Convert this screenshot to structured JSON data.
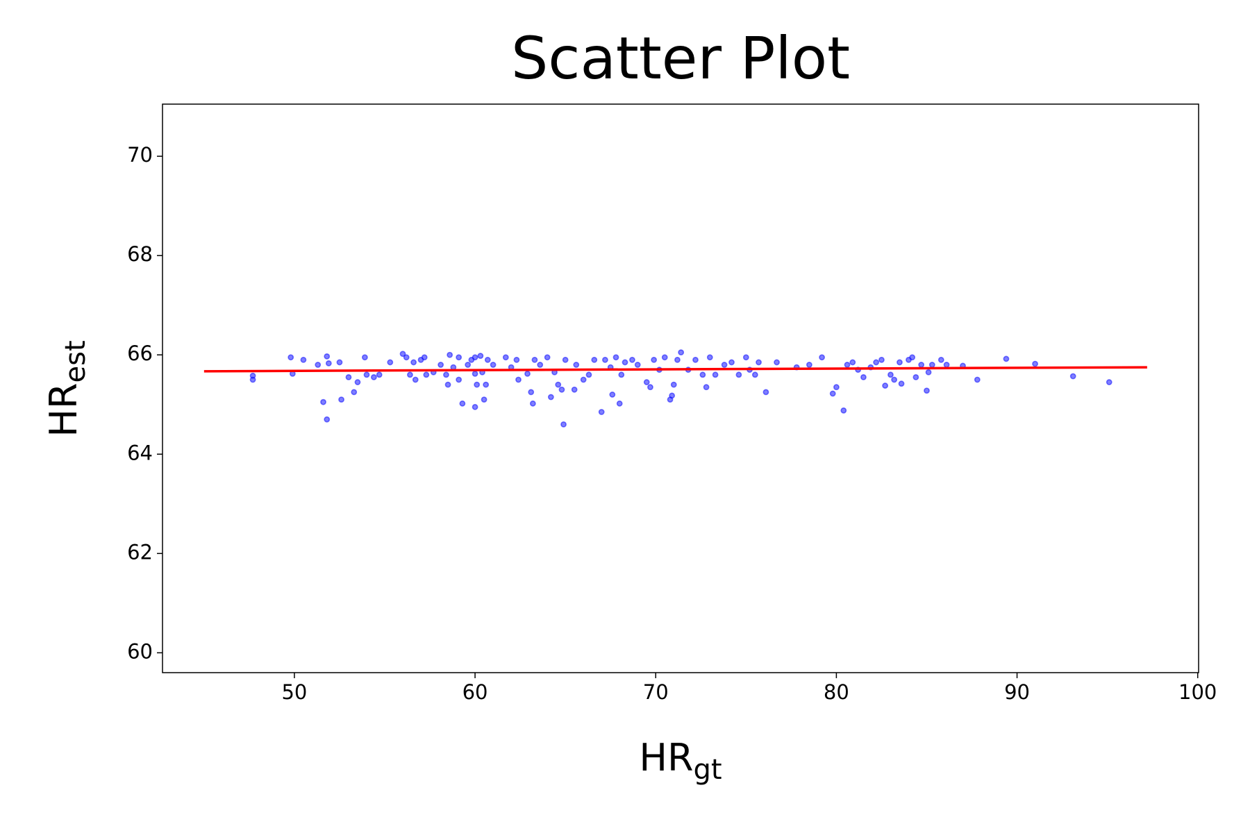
{
  "chart_data": {
    "type": "scatter",
    "title": "Scatter Plot",
    "xlabel": "HR",
    "xlabel_sub": "gt",
    "ylabel": "HR",
    "ylabel_sub": "est",
    "xlim": [
      42.7,
      100.05
    ],
    "ylim": [
      59.6,
      71.05
    ],
    "xticks": [
      50,
      60,
      70,
      80,
      90,
      100
    ],
    "yticks": [
      60,
      62,
      64,
      66,
      68,
      70
    ],
    "series": [
      {
        "type": "scatter",
        "color": "blue",
        "x": [
          47.7,
          47.7,
          49.8,
          49.9,
          50.5,
          51.3,
          51.6,
          51.8,
          51.8,
          51.9,
          52.5,
          52.6,
          53,
          53.3,
          53.5,
          53.9,
          54,
          54.4,
          54.7,
          55.3,
          56,
          56.2,
          56.4,
          56.6,
          56.7,
          57,
          57.2,
          57.3,
          57.7,
          58.1,
          58.4,
          58.5,
          58.6,
          58.8,
          59.1,
          59.1,
          59.3,
          59.6,
          59.8,
          60,
          60,
          60,
          60.1,
          60.3,
          60.4,
          60.5,
          60.6,
          60.7,
          61,
          61.7,
          62,
          62.3,
          62.4,
          62.9,
          63.1,
          63.2,
          63.3,
          63.6,
          64,
          64.2,
          64.4,
          64.6,
          64.8,
          64.9,
          65,
          65.5,
          65.6,
          66,
          66.3,
          66.6,
          67,
          67.2,
          67.5,
          67.6,
          67.8,
          68,
          68.1,
          68.3,
          68.7,
          69,
          69.5,
          69.7,
          69.9,
          70.2,
          70.5,
          70.8,
          70.9,
          71,
          71.2,
          71.4,
          71.8,
          72.2,
          72.6,
          72.8,
          73,
          73.3,
          73.8,
          74.2,
          74.6,
          75,
          75.2,
          75.5,
          75.7,
          76.1,
          76.7,
          77.8,
          78.5,
          79.2,
          79.8,
          80,
          80.4,
          80.6,
          80.9,
          81.2,
          81.5,
          81.9,
          82.2,
          82.5,
          82.7,
          83,
          83.2,
          83.5,
          83.6,
          84,
          84.2,
          84.4,
          84.7,
          85,
          85.1,
          85.3,
          85.8,
          86.1,
          87,
          87.8,
          89.4,
          91,
          93.1,
          95.1
        ],
        "y": [
          65.5,
          65.58,
          65.95,
          65.62,
          65.9,
          65.8,
          65.05,
          64.7,
          65.97,
          65.83,
          65.85,
          65.1,
          65.55,
          65.25,
          65.45,
          65.95,
          65.6,
          65.55,
          65.6,
          65.85,
          66.02,
          65.95,
          65.6,
          65.85,
          65.5,
          65.9,
          65.95,
          65.6,
          65.65,
          65.8,
          65.6,
          65.4,
          66,
          65.75,
          65.95,
          65.5,
          65.02,
          65.8,
          65.9,
          65.95,
          65.62,
          64.95,
          65.4,
          65.98,
          65.65,
          65.1,
          65.4,
          65.9,
          65.8,
          65.95,
          65.75,
          65.9,
          65.5,
          65.62,
          65.25,
          65.02,
          65.9,
          65.8,
          65.95,
          65.15,
          65.65,
          65.4,
          65.3,
          64.6,
          65.9,
          65.3,
          65.8,
          65.5,
          65.6,
          65.9,
          64.85,
          65.9,
          65.75,
          65.2,
          65.95,
          65.02,
          65.6,
          65.85,
          65.9,
          65.8,
          65.45,
          65.35,
          65.9,
          65.7,
          65.95,
          65.1,
          65.18,
          65.4,
          65.9,
          66.05,
          65.7,
          65.9,
          65.6,
          65.35,
          65.95,
          65.6,
          65.8,
          65.85,
          65.6,
          65.95,
          65.7,
          65.6,
          65.85,
          65.25,
          65.85,
          65.75,
          65.8,
          65.95,
          65.22,
          65.35,
          64.88,
          65.8,
          65.85,
          65.7,
          65.55,
          65.75,
          65.85,
          65.9,
          65.38,
          65.6,
          65.5,
          65.85,
          65.42,
          65.9,
          65.95,
          65.55,
          65.8,
          65.28,
          65.65,
          65.8,
          65.9,
          65.8,
          65.78,
          65.5,
          65.92,
          65.82,
          65.57,
          65.45
        ]
      },
      {
        "type": "line",
        "color": "red",
        "x": [
          45,
          97.2
        ],
        "y": [
          65.67,
          65.75
        ]
      }
    ]
  }
}
